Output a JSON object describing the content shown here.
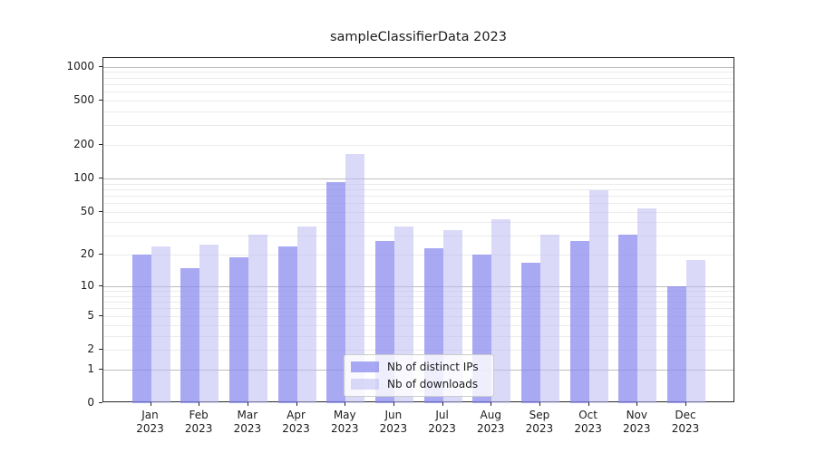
{
  "colors": {
    "background": "#ffffff",
    "spine": "#262626",
    "text": "#1c1c1c",
    "grid_major": "#bdbdbd",
    "grid_minor": "#ebebeb",
    "series_dark": "#8888ee",
    "series_light": "#bbbbf3",
    "legend_border": "#cccccc"
  },
  "chart_data": {
    "type": "bar",
    "title": "sampleClassifierData 2023",
    "categories": [
      "Jan",
      "Feb",
      "Mar",
      "Apr",
      "May",
      "Jun",
      "Jul",
      "Aug",
      "Sep",
      "Oct",
      "Nov",
      "Dec"
    ],
    "xtick_year": "2023",
    "series": [
      {
        "name": "Nb of distinct IPs",
        "color": "#8888ee",
        "alpha": 0.72,
        "values": [
          20,
          15,
          19,
          24,
          92,
          27,
          23,
          20,
          17,
          27,
          31,
          10
        ]
      },
      {
        "name": "Nb of downloads",
        "color": "#bbbbf3",
        "alpha": 0.55,
        "values": [
          24,
          25,
          31,
          37,
          165,
          37,
          34,
          43,
          31,
          79,
          54,
          18
        ]
      }
    ],
    "xlabel": "",
    "ylabel": "",
    "yscale": "log1p",
    "ylim": [
      0,
      1200
    ],
    "yticks": [
      0,
      1,
      2,
      5,
      10,
      20,
      50,
      100,
      200,
      500,
      1000
    ],
    "major_gridlines": [
      1,
      10,
      100,
      1000
    ],
    "minor_gridlines": [
      2,
      3,
      4,
      5,
      6,
      7,
      8,
      9,
      20,
      30,
      40,
      50,
      60,
      70,
      80,
      90,
      200,
      300,
      400,
      500,
      600,
      700,
      800,
      900
    ],
    "grid": true,
    "legend_position": "lower center"
  }
}
